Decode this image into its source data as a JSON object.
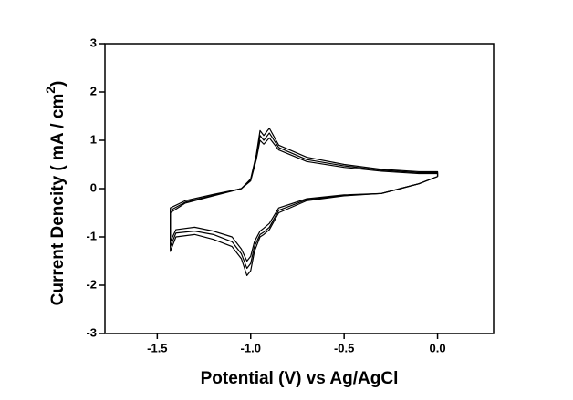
{
  "chart_data": {
    "type": "line",
    "xlabel": "Potential (V) vs Ag/AgCl",
    "ylabel": "Current Dencity ( mA / cm",
    "ylabel_superscript": "2",
    "ylabel_end": ")",
    "x": [
      0,
      -0.1,
      -0.2,
      -0.3,
      -0.5,
      -0.7,
      -0.85,
      -0.9,
      -0.93,
      -0.95,
      -0.98,
      -1.0,
      -1.02,
      -1.05,
      -1.1,
      -1.2,
      -1.3,
      -1.4,
      -1.43,
      -1.43,
      -1.35,
      -1.2,
      -1.05,
      -1.0,
      -0.97,
      -0.95,
      -0.93,
      -0.9,
      -0.85,
      -0.7,
      -0.5,
      -0.3,
      -0.1,
      0,
      0
    ],
    "series": [
      {
        "color": "#000000",
        "values": [
          0.25,
          0.1,
          0.0,
          -0.1,
          -0.15,
          -0.25,
          -0.5,
          -0.85,
          -0.95,
          -1.0,
          -1.3,
          -1.7,
          -1.8,
          -1.45,
          -1.2,
          -1.05,
          -0.95,
          -1.0,
          -1.3,
          -0.5,
          -0.3,
          -0.15,
          0.0,
          0.2,
          0.7,
          1.2,
          1.1,
          1.25,
          0.9,
          0.65,
          0.5,
          0.4,
          0.35,
          0.35,
          0.25
        ]
      },
      {
        "color": "#000000",
        "values": [
          0.25,
          0.1,
          0.0,
          -0.1,
          -0.14,
          -0.23,
          -0.45,
          -0.8,
          -0.9,
          -0.95,
          -1.2,
          -1.55,
          -1.65,
          -1.35,
          -1.1,
          -0.95,
          -0.88,
          -0.92,
          -1.2,
          -0.45,
          -0.28,
          -0.14,
          0.0,
          0.18,
          0.65,
          1.1,
          1.0,
          1.15,
          0.85,
          0.6,
          0.47,
          0.38,
          0.33,
          0.33,
          0.25
        ]
      },
      {
        "color": "#000000",
        "values": [
          0.25,
          0.1,
          0.0,
          -0.1,
          -0.13,
          -0.21,
          -0.4,
          -0.72,
          -0.82,
          -0.88,
          -1.1,
          -1.4,
          -1.5,
          -1.25,
          -1.0,
          -0.88,
          -0.8,
          -0.85,
          -1.1,
          -0.4,
          -0.25,
          -0.12,
          0.0,
          0.16,
          0.6,
          1.0,
          0.92,
          1.05,
          0.8,
          0.56,
          0.44,
          0.36,
          0.31,
          0.31,
          0.25
        ]
      }
    ],
    "xlim": [
      -1.78,
      0.3
    ],
    "ylim": [
      -3,
      3
    ],
    "xticks": [
      {
        "value": -1.5,
        "label": "-1.5"
      },
      {
        "value": -1.0,
        "label": "-1.0"
      },
      {
        "value": -0.5,
        "label": "-0.5"
      },
      {
        "value": 0.0,
        "label": "0.0"
      }
    ],
    "yticks": [
      3,
      2,
      1,
      0,
      -1,
      -2,
      -3
    ],
    "grid": false
  }
}
